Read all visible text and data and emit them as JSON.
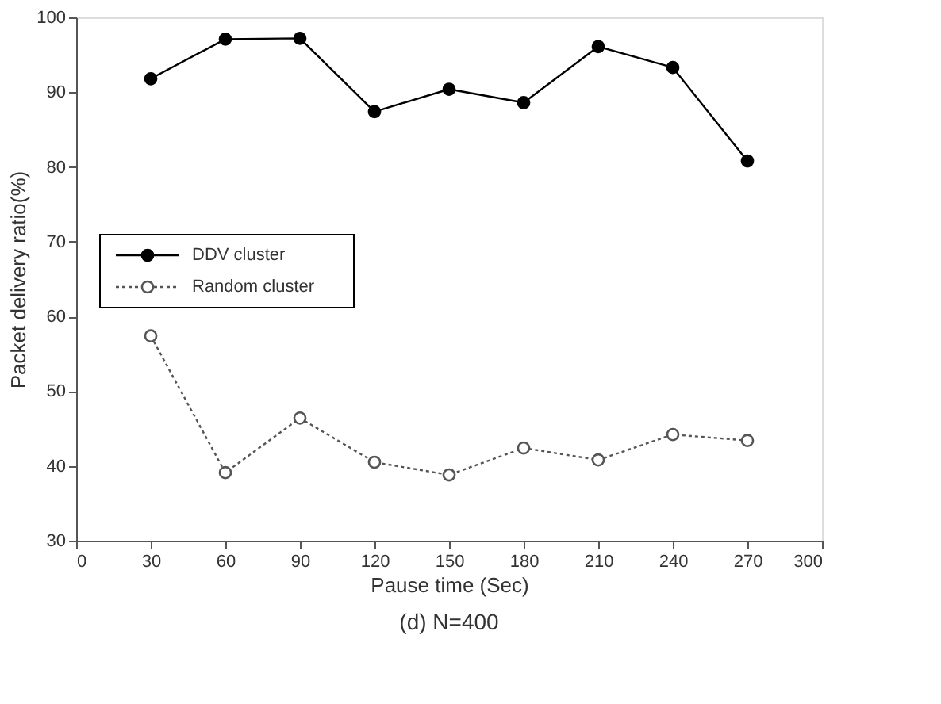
{
  "chart_data": {
    "type": "line",
    "xlabel": "Pause time (Sec)",
    "ylabel": "Packet delivery ratio(%)",
    "x": [
      30,
      60,
      90,
      120,
      150,
      180,
      210,
      240,
      270
    ],
    "series": [
      {
        "name": "DDV cluster",
        "color": "#000000",
        "line_style": "solid",
        "values": [
          91.8,
          97.1,
          97.2,
          87.4,
          90.4,
          88.6,
          96.1,
          93.3,
          80.8
        ]
      },
      {
        "name": "Random cluster",
        "color": "#555555",
        "line_style": "dotted",
        "values": [
          57.4,
          39.1,
          46.4,
          40.5,
          38.8,
          42.4,
          40.8,
          44.2,
          43.4
        ]
      }
    ],
    "xlim": [
      0,
      300
    ],
    "xticks": [
      0,
      30,
      60,
      90,
      120,
      150,
      180,
      210,
      240,
      270,
      300
    ],
    "ylim": [
      30,
      100
    ],
    "yticks": [
      30,
      40,
      50,
      60,
      70,
      80,
      90,
      100
    ],
    "marker": "circle",
    "grid": false,
    "legend": "left",
    "annotations": [
      "(d) N=400"
    ]
  }
}
